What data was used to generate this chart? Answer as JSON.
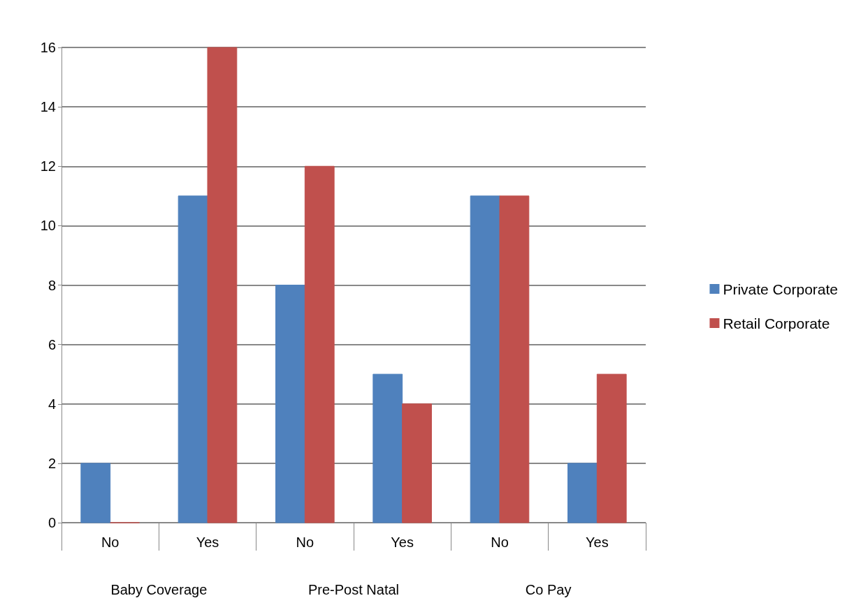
{
  "chart_data": {
    "type": "bar",
    "categories": [
      "No",
      "Yes",
      "No",
      "Yes",
      "No",
      "Yes"
    ],
    "series": [
      {
        "name": "Private Corporate",
        "color": "#4f81bd",
        "values": [
          2,
          11,
          8,
          5,
          11,
          2
        ]
      },
      {
        "name": "Retail Corporate",
        "color": "#c0504d",
        "values": [
          0,
          16,
          12,
          4,
          11,
          5
        ]
      }
    ],
    "annotations": [
      "Baby Coverage",
      "Pre-Post Natal",
      "Co Pay"
    ],
    "ylim": [
      0,
      16
    ],
    "yticks": [
      0,
      2,
      4,
      6,
      8,
      10,
      12,
      14,
      16
    ],
    "grid": "y",
    "legend": "right"
  }
}
